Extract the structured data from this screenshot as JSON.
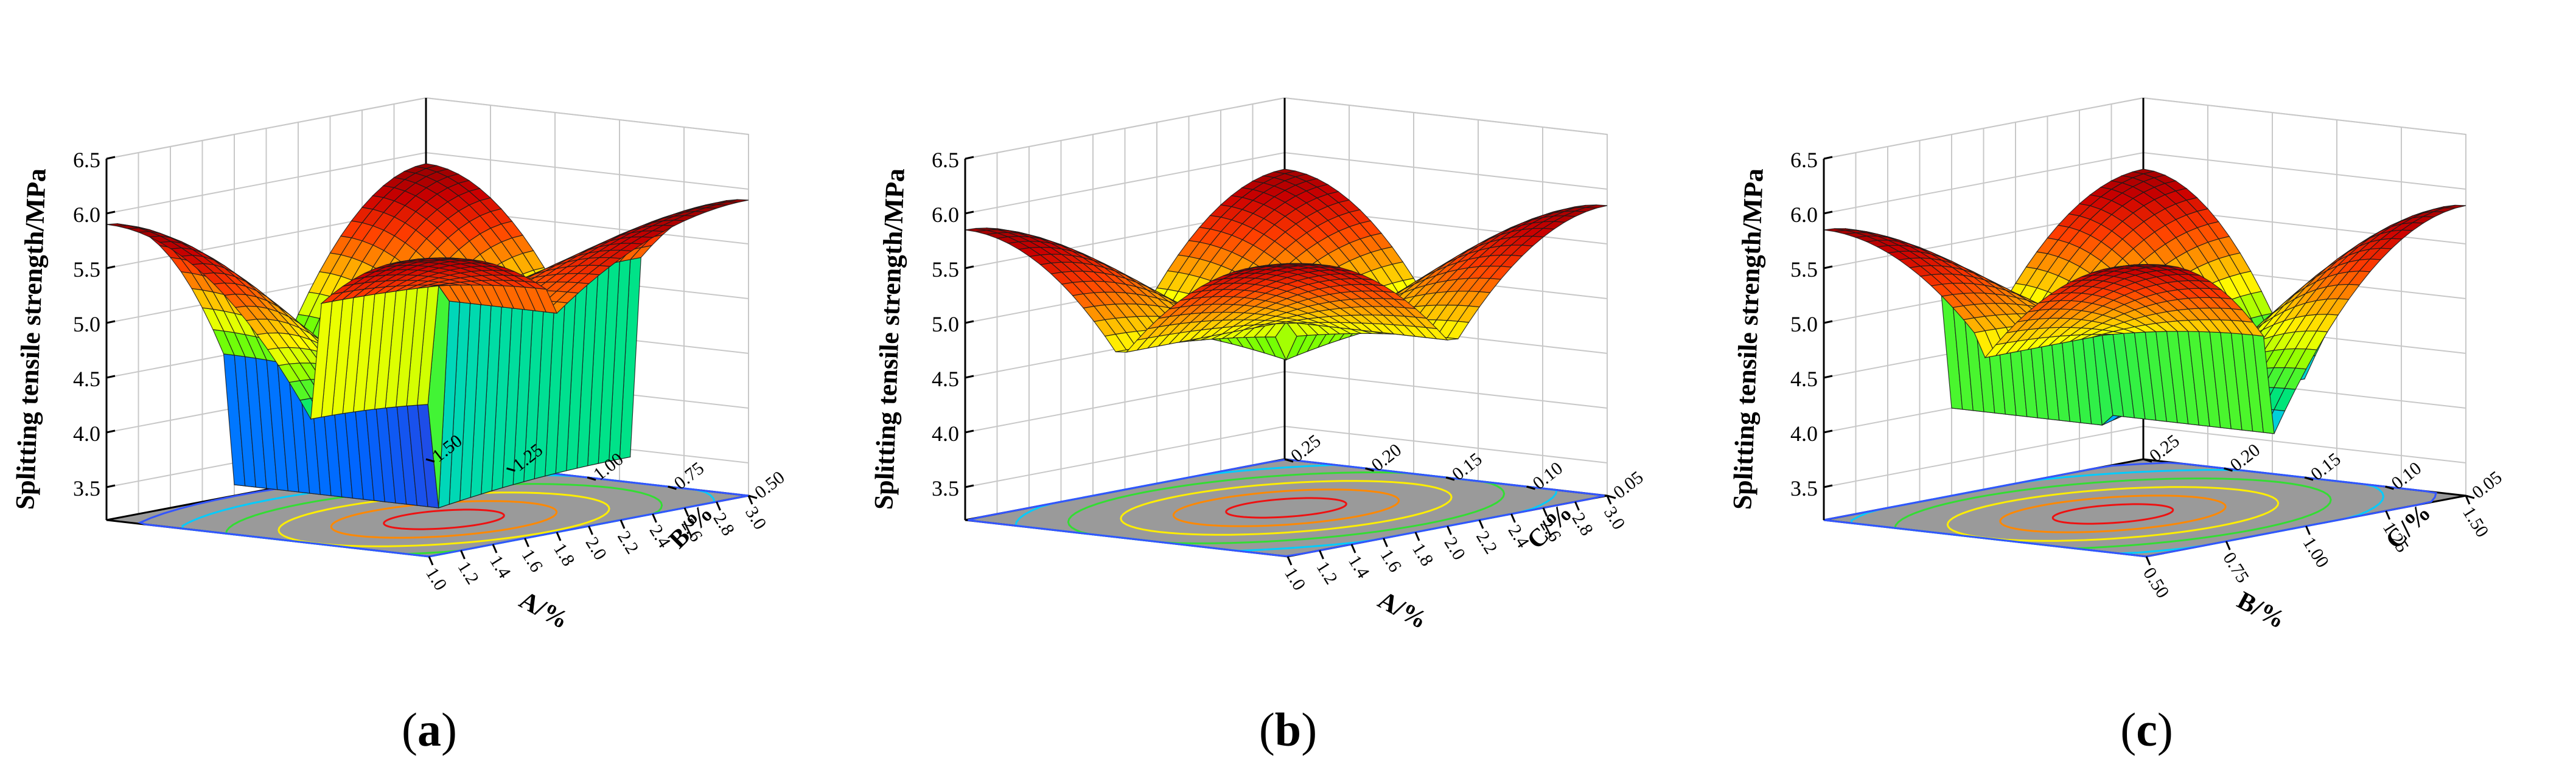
{
  "figure": {
    "captions": [
      {
        "open": "(",
        "letter": "a",
        "close": ")"
      },
      {
        "open": "(",
        "letter": "b",
        "close": ")"
      },
      {
        "open": "(",
        "letter": "c",
        "close": ")"
      }
    ]
  },
  "colors": {
    "floor": "#9a9a9a",
    "grid": "#c8c8c8",
    "frame": "#000000",
    "mesh": "#1a1a1a",
    "colormap": [
      "#6a0dad",
      "#0066ff",
      "#00c8ff",
      "#00e676",
      "#76ff03",
      "#ffff00",
      "#ffa000",
      "#ff3d00",
      "#cc0000",
      "#8b0000"
    ],
    "contours": [
      "#3355ff",
      "#00ccff",
      "#33dd33",
      "#ffee00",
      "#ff8800",
      "#ee1111"
    ]
  },
  "chart_data": [
    {
      "type": "surface",
      "panel": "a",
      "zlabel": "Splitting tensile strength/MPa",
      "xlabel": "A/%",
      "ylabel": "B/%",
      "zlim": [
        3.2,
        6.5
      ],
      "zticks": [
        "3.5",
        "4.0",
        "4.5",
        "5.0",
        "5.5",
        "6.0",
        "6.5"
      ],
      "xlim": [
        1.0,
        3.0
      ],
      "xticks": [
        "1.0",
        "1.2",
        "1.4",
        "1.6",
        "1.8",
        "2.0",
        "2.2",
        "2.4",
        "2.6",
        "2.8",
        "3.0"
      ],
      "ylim": [
        0.5,
        1.5
      ],
      "yticks": [
        "0.50",
        "0.75",
        "1.00",
        "1.25",
        "1.50"
      ],
      "surface_corners": {
        "x_min_y_min": 3.3,
        "x_max_y_min": 4.25,
        "x_min_y_max": 5.2,
        "x_max_y_max": 5.35
      },
      "peak": {
        "x": 2.2,
        "y": 1.15,
        "z": 5.9
      },
      "grid": true
    },
    {
      "type": "surface",
      "panel": "b",
      "zlabel": "Splitting tensile strength/MPa",
      "xlabel": "A/%",
      "ylabel": "C/%",
      "zlim": [
        3.2,
        6.5
      ],
      "zticks": [
        "3.5",
        "4.0",
        "4.5",
        "5.0",
        "5.5",
        "6.0",
        "6.5"
      ],
      "xlim": [
        1.0,
        3.0
      ],
      "xticks": [
        "1.0",
        "1.2",
        "1.4",
        "1.6",
        "1.8",
        "2.0",
        "2.2",
        "2.4",
        "2.6",
        "2.8",
        "3.0"
      ],
      "ylim": [
        0.05,
        0.25
      ],
      "yticks": [
        "0.05",
        "0.10",
        "0.15",
        "0.20",
        "0.25"
      ],
      "surface_corners": {
        "x_min_y_min": 4.5,
        "x_max_y_min": 4.75,
        "x_min_y_max": 4.75,
        "x_max_y_max": 4.9
      },
      "peak": {
        "x": 2.0,
        "y": 0.15,
        "z": 5.85
      },
      "grid": true
    },
    {
      "type": "surface",
      "panel": "c",
      "zlabel": "Splitting tensile strength/MPa",
      "xlabel": "B/%",
      "ylabel": "C/%",
      "zlim": [
        3.2,
        6.5
      ],
      "zticks": [
        "3.5",
        "4.0",
        "4.5",
        "5.0",
        "5.5",
        "6.0",
        "6.5"
      ],
      "xlim": [
        0.5,
        1.5
      ],
      "xticks": [
        "0.50",
        "0.75",
        "1.00",
        "1.25",
        "1.50"
      ],
      "ylim": [
        0.05,
        0.25
      ],
      "yticks": [
        "0.05",
        "0.10",
        "0.15",
        "0.20",
        "0.25"
      ],
      "surface_corners": {
        "x_min_y_min": 4.0,
        "x_max_y_min": 4.95,
        "x_min_y_max": 4.1,
        "x_max_y_max": 4.85
      },
      "peak": {
        "x": 1.1,
        "y": 0.15,
        "z": 5.85
      },
      "grid": true
    }
  ]
}
